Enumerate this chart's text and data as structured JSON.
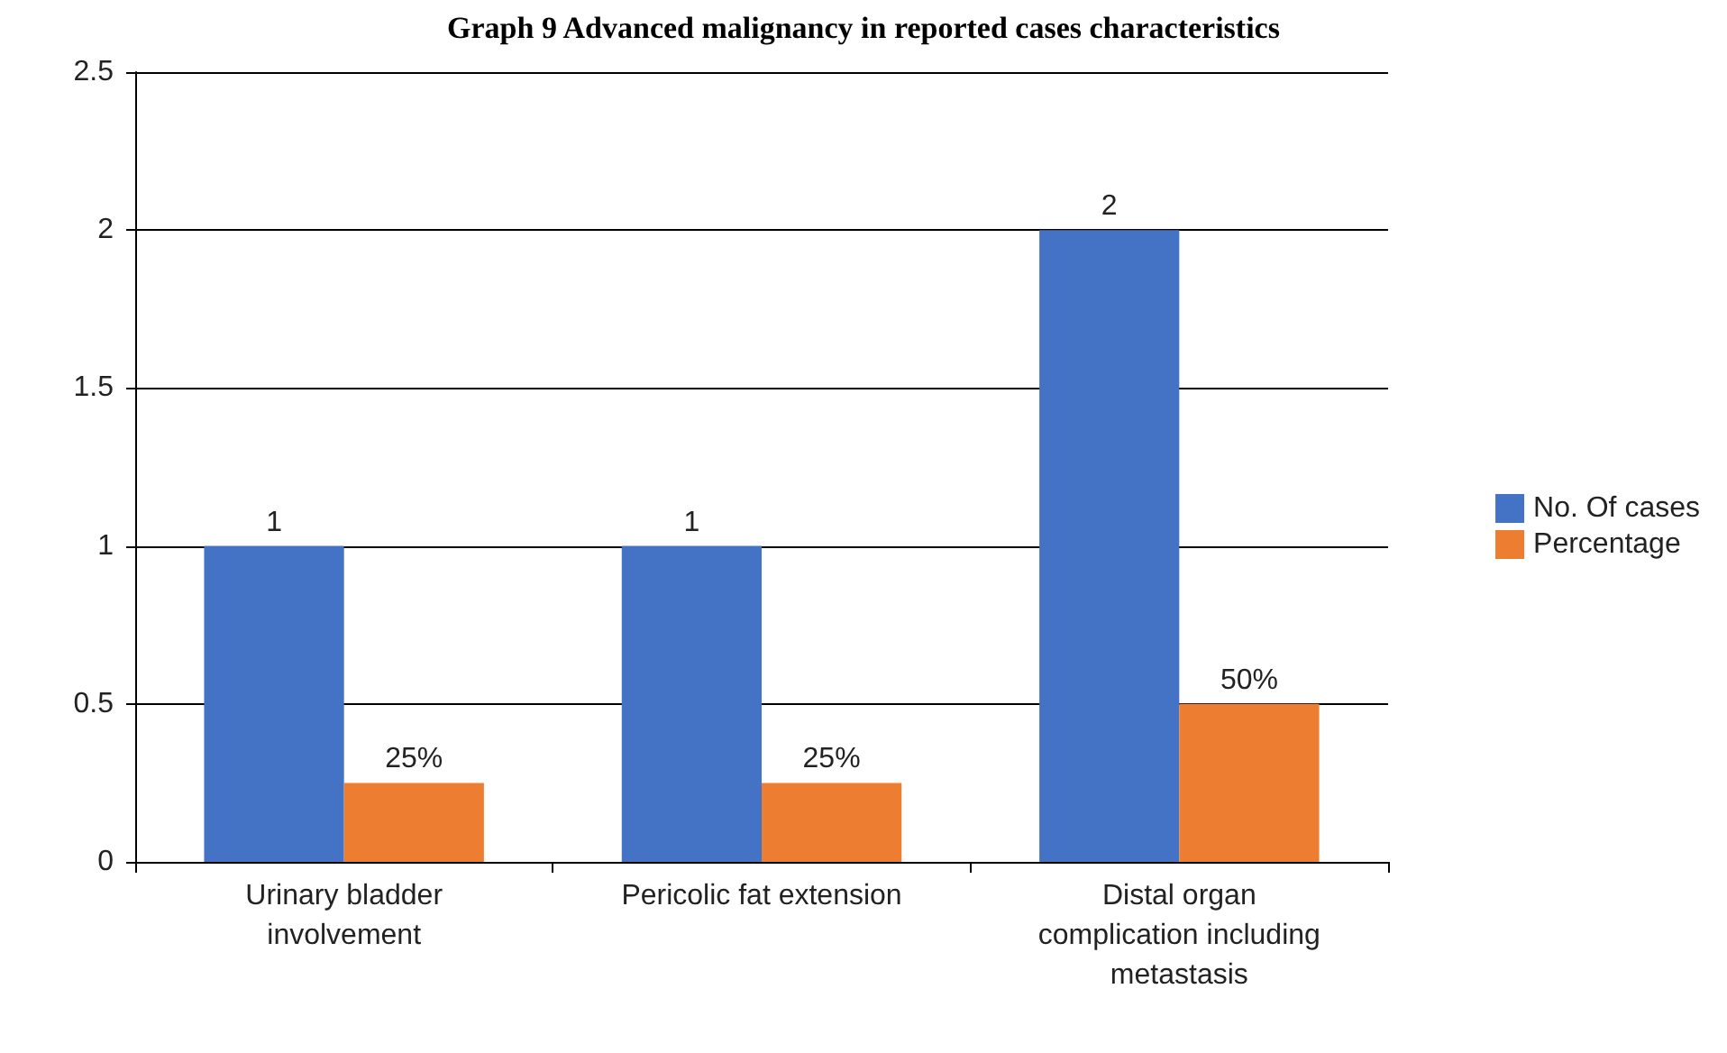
{
  "chart_data": {
    "type": "bar",
    "title": "Graph 9 Advanced malignancy in reported cases characteristics",
    "categories": [
      "Urinary bladder\ninvolvement",
      "Pericolic fat extension",
      "Distal organ\ncomplication including\nmetastasis"
    ],
    "series": [
      {
        "name": "No. Of cases",
        "color": "#4472c4",
        "values": [
          1,
          1,
          2
        ],
        "value_labels": [
          "1",
          "1",
          "2"
        ]
      },
      {
        "name": "Percentage",
        "color": "#ed7d31",
        "values": [
          0.25,
          0.25,
          0.5
        ],
        "value_labels": [
          "25%",
          "25%",
          "50%"
        ]
      }
    ],
    "ylim": [
      0,
      2.5
    ],
    "yticks": [
      0,
      0.5,
      1,
      1.5,
      2,
      2.5
    ],
    "grid": "y",
    "legend": "right"
  }
}
